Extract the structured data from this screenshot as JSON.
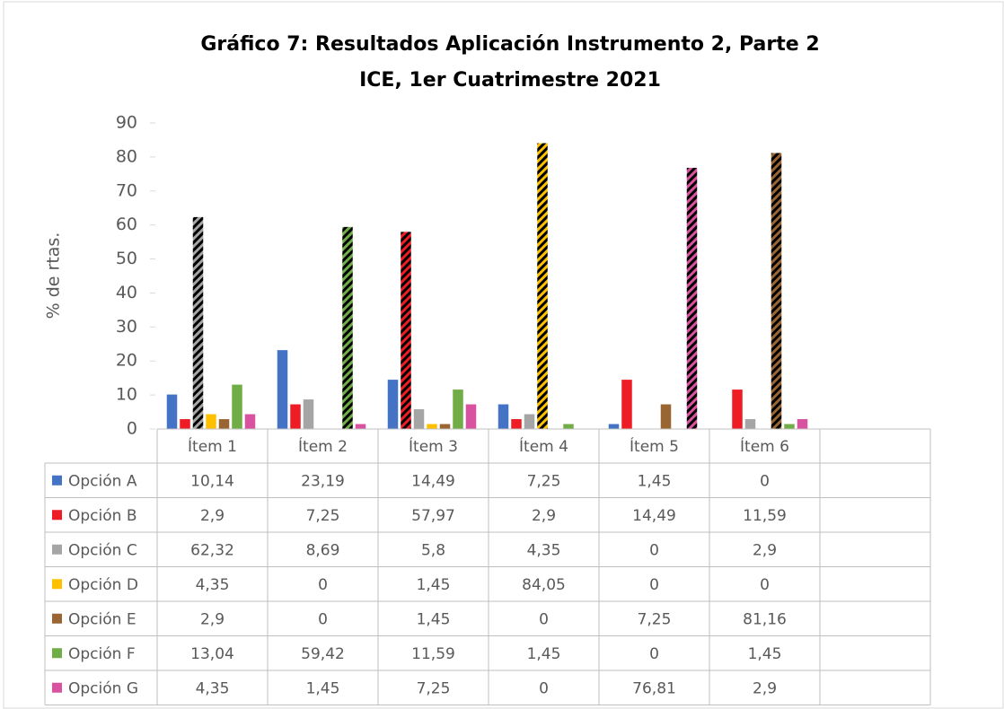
{
  "chart_data": {
    "type": "bar",
    "title": "Gráfico 7: Resultados Aplicación Instrumento 2, Parte 2",
    "subtitle": "ICE, 1er Cuatrimestre 2021",
    "y_label": "% de rtas.",
    "categories": [
      "Ítem 1",
      "Ítem 2",
      "Ítem 3",
      "Ítem 4",
      "Ítem 5",
      "Ítem 6",
      null
    ],
    "ylim": [
      0,
      90
    ],
    "yticks": [
      0,
      10,
      20,
      30,
      40,
      50,
      60,
      70,
      80,
      90
    ],
    "grid": false,
    "series": [
      {
        "name": "Opción A",
        "color": "#4472c4",
        "values": [
          10.14,
          23.19,
          14.49,
          7.25,
          1.45,
          0,
          null
        ],
        "value_labels": [
          "10,14",
          "23,19",
          "14,49",
          "7,25",
          "1,45",
          "0",
          null
        ],
        "hatched": [
          false,
          false,
          false,
          false,
          false,
          false,
          false
        ]
      },
      {
        "name": "Opción B",
        "color": "#ee1c25",
        "values": [
          2.9,
          7.25,
          57.97,
          2.9,
          14.49,
          11.59,
          null
        ],
        "value_labels": [
          "2,9",
          "7,25",
          "57,97",
          "2,9",
          "14,49",
          "11,59",
          null
        ],
        "hatched": [
          false,
          false,
          true,
          false,
          false,
          false,
          false
        ]
      },
      {
        "name": "Opción C",
        "color": "#a5a5a5",
        "values": [
          62.32,
          8.69,
          5.8,
          4.35,
          0,
          2.9,
          null
        ],
        "value_labels": [
          "62,32",
          "8,69",
          "5,8",
          "4,35",
          "0",
          "2,9",
          null
        ],
        "hatched": [
          true,
          false,
          false,
          false,
          false,
          false,
          false
        ]
      },
      {
        "name": "Opción D",
        "color": "#ffc000",
        "values": [
          4.35,
          0,
          1.45,
          84.05,
          0,
          0,
          null
        ],
        "value_labels": [
          "4,35",
          "0",
          "1,45",
          "84,05",
          "0",
          "0",
          null
        ],
        "hatched": [
          false,
          false,
          false,
          true,
          false,
          false,
          false
        ]
      },
      {
        "name": "Opción E",
        "color": "#996633",
        "values": [
          2.9,
          0,
          1.45,
          0,
          7.25,
          81.16,
          null
        ],
        "value_labels": [
          "2,9",
          "0",
          "1,45",
          "0",
          "7,25",
          "81,16",
          null
        ],
        "hatched": [
          false,
          false,
          false,
          false,
          false,
          true,
          false
        ]
      },
      {
        "name": "Opción F",
        "color": "#70ad47",
        "values": [
          13.04,
          59.42,
          11.59,
          1.45,
          0,
          1.45,
          null
        ],
        "value_labels": [
          "13,04",
          "59,42",
          "11,59",
          "1,45",
          "0",
          "1,45",
          null
        ],
        "hatched": [
          false,
          true,
          false,
          false,
          false,
          false,
          false
        ]
      },
      {
        "name": "Opción G",
        "color": "#d9529f",
        "values": [
          4.35,
          1.45,
          7.25,
          0,
          76.81,
          2.9,
          null
        ],
        "value_labels": [
          "4,35",
          "1,45",
          "7,25",
          "0",
          "76,81",
          "2,9",
          null
        ],
        "hatched": [
          false,
          false,
          false,
          false,
          true,
          false,
          false
        ]
      }
    ]
  }
}
